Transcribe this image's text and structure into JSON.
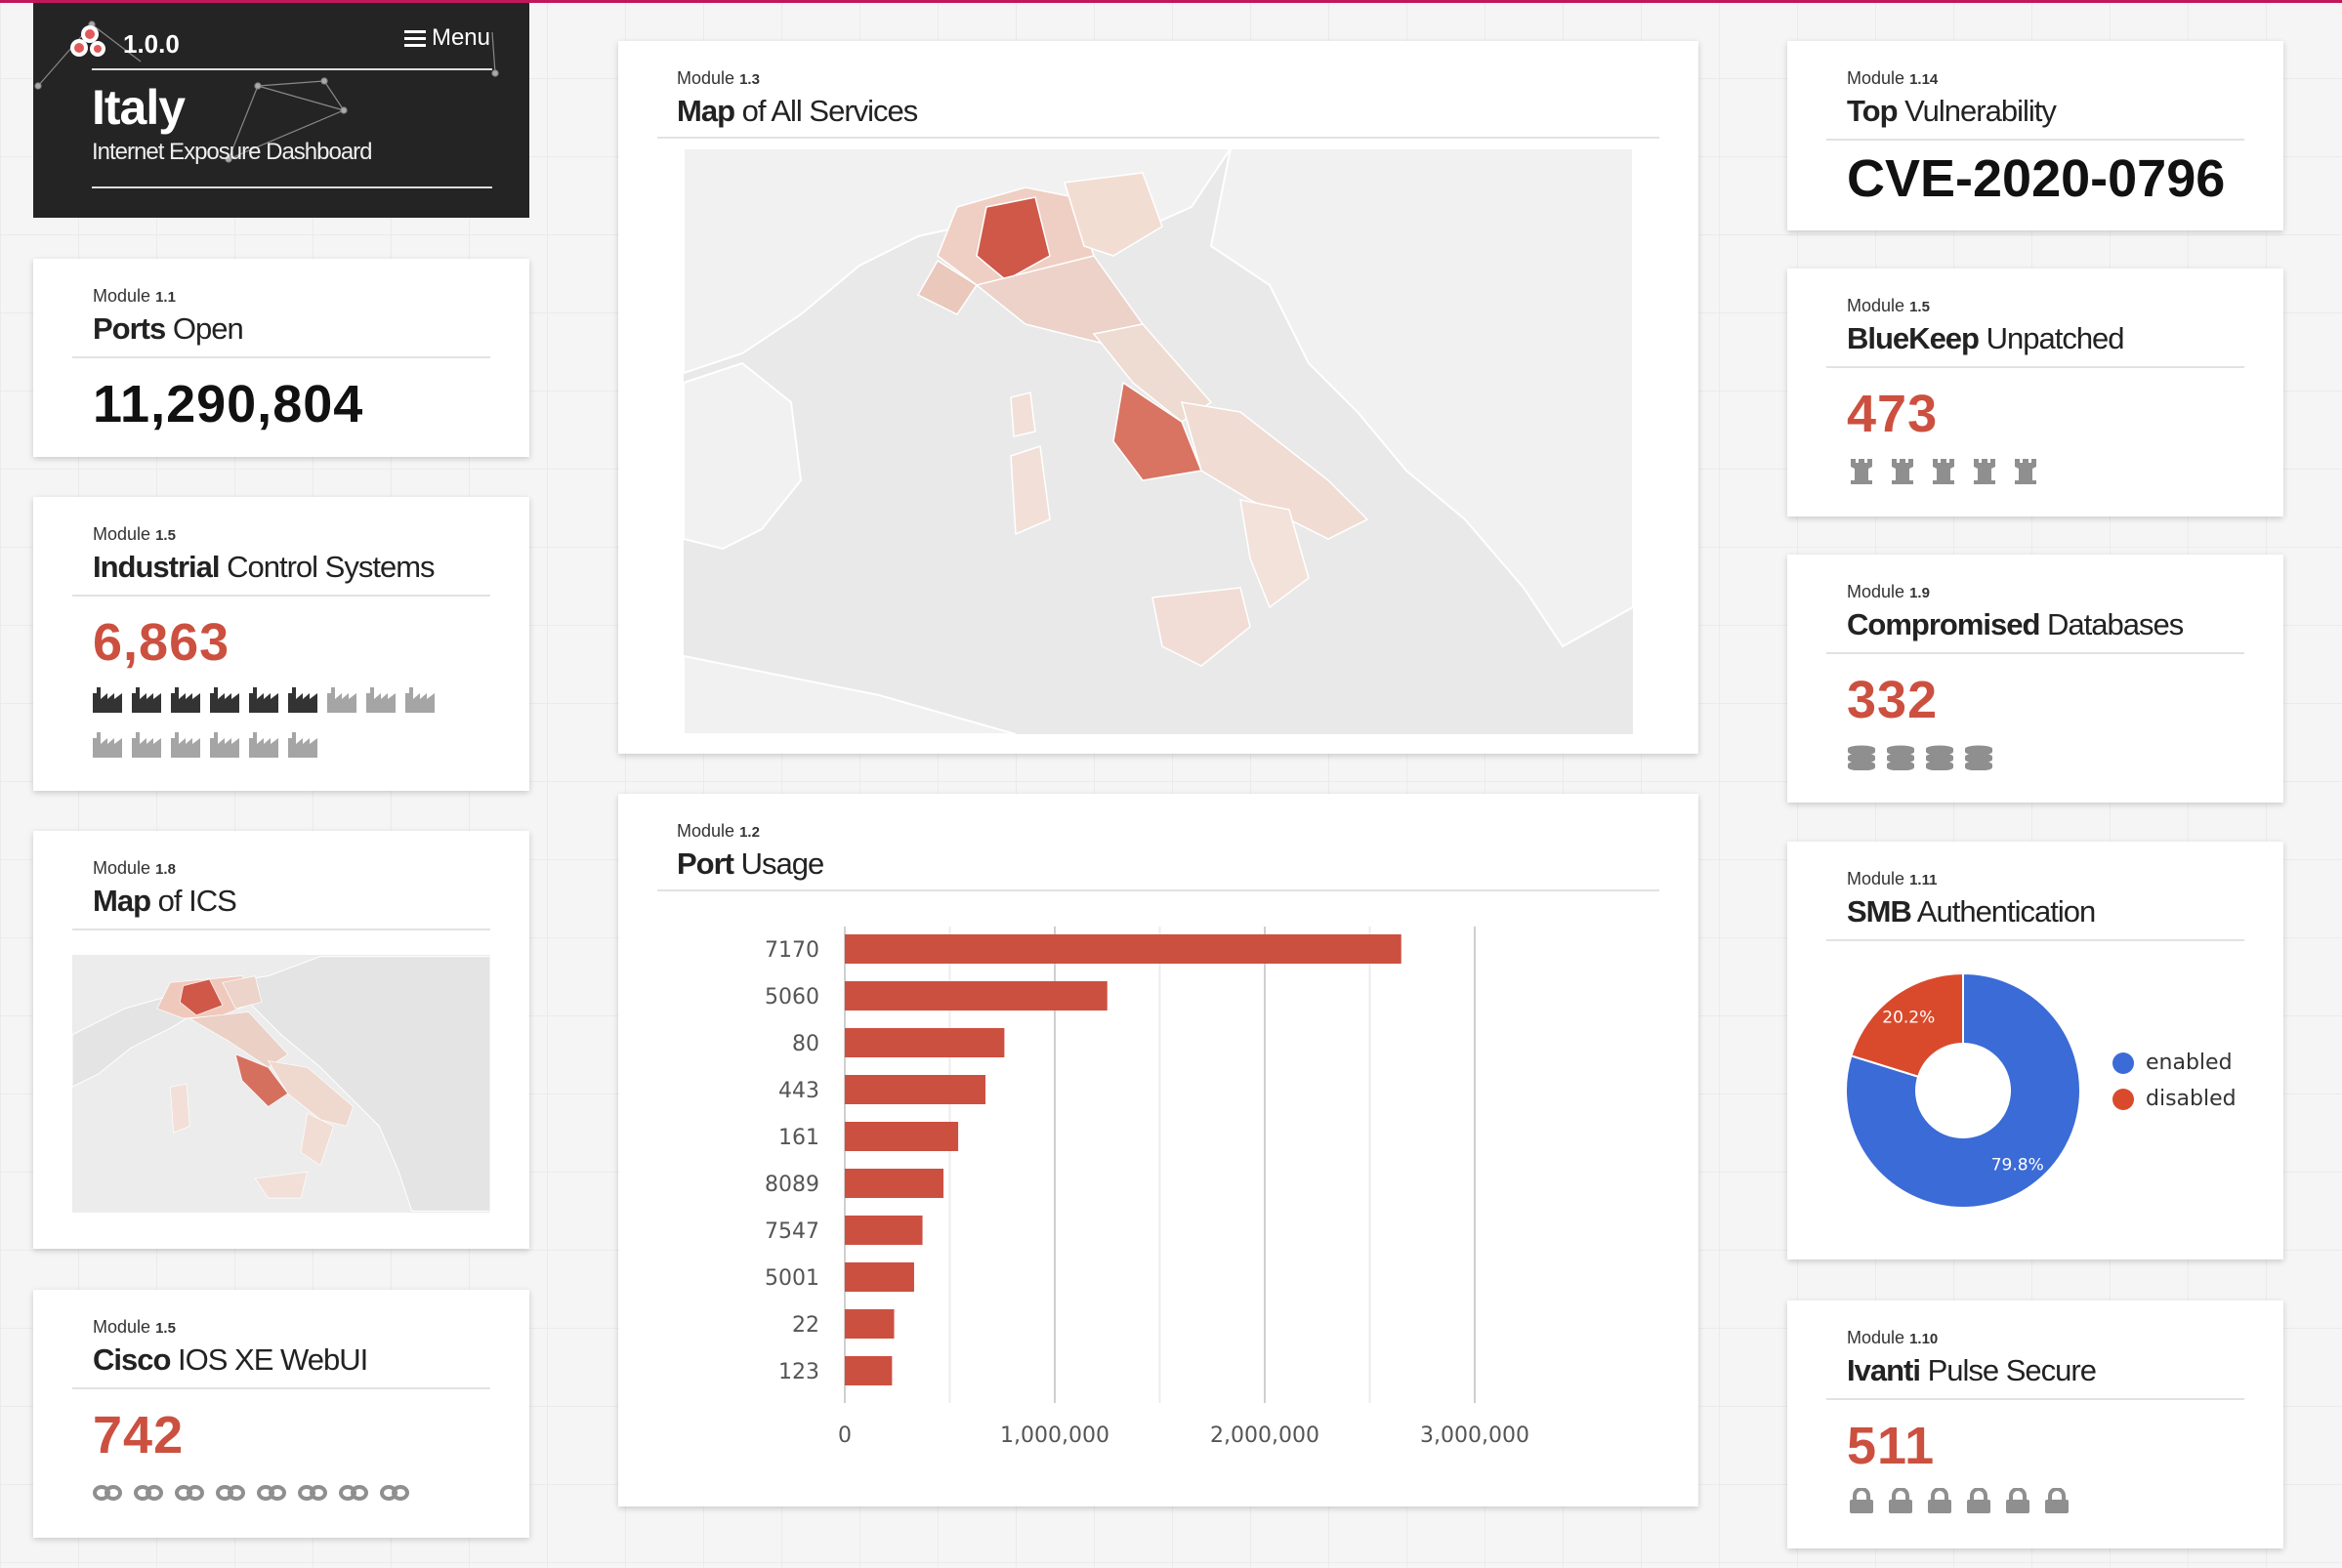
{
  "header": {
    "version": "1.0.0",
    "menu_label": "Menu",
    "country": "Italy",
    "subtitle": "Internet Exposure Dashboard"
  },
  "modules": {
    "ports_open": {
      "label": "Module",
      "id": "1.1",
      "title_bold": "Ports",
      "title_rest": " Open",
      "value": "11,290,804"
    },
    "ics": {
      "label": "Module",
      "id": "1.5",
      "title_bold": "Industrial",
      "title_rest": " Control Systems",
      "value": "6,863",
      "icon": "factory-icon",
      "icons_dark": 6,
      "icons_light": 9
    },
    "map_ics": {
      "label": "Module",
      "id": "1.8",
      "title_bold": "Map",
      "title_rest": " of ICS"
    },
    "cisco": {
      "label": "Module",
      "id": "1.5",
      "title_bold": "Cisco",
      "title_rest": " IOS XE WebUI",
      "value": "742",
      "icon": "link-icon",
      "icon_count": 8
    },
    "map_all": {
      "label": "Module",
      "id": "1.3",
      "title_bold": "Map",
      "title_rest": " of All Services"
    },
    "port_usage": {
      "label": "Module",
      "id": "1.2",
      "title_bold": "Port",
      "title_rest": " Usage"
    },
    "top_vuln": {
      "label": "Module",
      "id": "1.14",
      "title_bold": "Top",
      "title_rest": " Vulnerability",
      "value": "CVE-2020-0796"
    },
    "bluekeep": {
      "label": "Module",
      "id": "1.5",
      "title_bold": "BlueKeep",
      "title_rest": " Unpatched",
      "value": "473",
      "icon": "tower-icon",
      "icon_count": 5
    },
    "compromised_db": {
      "label": "Module",
      "id": "1.9",
      "title_bold": "Compromised",
      "title_rest": " Databases",
      "value": "332",
      "icon": "database-icon",
      "icon_count": 4
    },
    "smb": {
      "label": "Module",
      "id": "1.11",
      "title_bold": "SMB",
      "title_rest": " Authentication",
      "legend_enabled": "enabled",
      "legend_disabled": "disabled",
      "pct_enabled": "79.8%",
      "pct_disabled": "20.2%"
    },
    "ivanti": {
      "label": "Module",
      "id": "1.10",
      "title_bold": "Ivanti",
      "title_rest": " Pulse Secure",
      "value": "511",
      "icon": "lock-icon",
      "icon_count": 6
    }
  },
  "colors": {
    "accent_red": "#cc5040",
    "enabled_blue": "#3b6bd6",
    "disabled_red": "#d94a2c"
  },
  "chart_data": [
    {
      "type": "bar",
      "orientation": "horizontal",
      "categories": [
        "7170",
        "5060",
        "80",
        "443",
        "161",
        "8089",
        "7547",
        "5001",
        "22",
        "123"
      ],
      "values": [
        2650000,
        1250000,
        760000,
        670000,
        540000,
        470000,
        370000,
        330000,
        235000,
        225000
      ],
      "xlim": [
        0,
        3000000
      ],
      "xticks": [
        "0",
        "1,000,000",
        "2,000,000",
        "3,000,000"
      ],
      "grid": true
    },
    {
      "type": "pie",
      "style": "donut",
      "labels": [
        "enabled",
        "disabled"
      ],
      "values": [
        79.8,
        20.2
      ],
      "colors": [
        "#3b6bd6",
        "#d94a2c"
      ],
      "legend": "right"
    }
  ]
}
